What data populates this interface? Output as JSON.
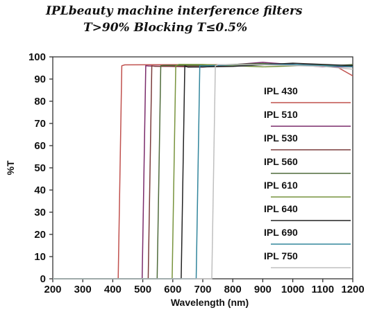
{
  "chart_data": {
    "type": "line",
    "title": "IPLbeauty machine interference filters",
    "subtitle": "T>90% Blocking T≤0.5%",
    "xlabel": "Wavelength (nm)",
    "ylabel": "%T",
    "xlim": [
      200,
      1200
    ],
    "ylim": [
      0,
      100
    ],
    "xticks": [
      "200",
      "300",
      "400",
      "500",
      "600",
      "700",
      "800",
      "900",
      "1000",
      "1100",
      "1200"
    ],
    "yticks": [
      "0",
      "10",
      "20",
      "30",
      "40",
      "50",
      "60",
      "70",
      "80",
      "90",
      "100"
    ],
    "grid": false,
    "legend_position": "right",
    "series": [
      {
        "name": "IPL 430",
        "color": "#c0504d",
        "x": [
          200,
          418,
          430,
          440,
          600,
          800,
          1000,
          1150,
          1200
        ],
        "y": [
          0,
          0,
          96,
          96,
          96,
          97,
          96,
          95,
          92
        ]
      },
      {
        "name": "IPL 510",
        "color": "#7a2a6a",
        "x": [
          200,
          498,
          510,
          520,
          700,
          900,
          1100,
          1200
        ],
        "y": [
          0,
          0,
          96,
          96,
          96,
          97,
          96,
          96
        ]
      },
      {
        "name": "IPL 530",
        "color": "#7a3b3b",
        "x": [
          200,
          518,
          530,
          540,
          700,
          900,
          1100,
          1200
        ],
        "y": [
          0,
          0,
          96,
          96,
          96,
          96,
          97,
          96
        ]
      },
      {
        "name": "IPL 560",
        "color": "#4e6b3a",
        "x": [
          200,
          548,
          560,
          570,
          700,
          900,
          1100,
          1200
        ],
        "y": [
          0,
          0,
          96,
          96,
          96,
          97,
          96,
          96
        ]
      },
      {
        "name": "IPL 610",
        "color": "#77933c",
        "x": [
          200,
          598,
          610,
          620,
          700,
          900,
          1100,
          1200
        ],
        "y": [
          0,
          0,
          96,
          96,
          96,
          96,
          96,
          95
        ]
      },
      {
        "name": "IPL 640",
        "color": "#222222",
        "x": [
          200,
          628,
          640,
          650,
          800,
          1000,
          1200
        ],
        "y": [
          0,
          0,
          96,
          96,
          96,
          97,
          96
        ]
      },
      {
        "name": "IPL 690",
        "color": "#31859c",
        "x": [
          200,
          678,
          690,
          700,
          800,
          1000,
          1200
        ],
        "y": [
          0,
          0,
          96,
          96,
          97,
          96,
          96
        ]
      },
      {
        "name": "IPL 750",
        "color": "#bfbfbf",
        "x": [
          200,
          730,
          742,
          752,
          900,
          1100,
          1200
        ],
        "y": [
          0,
          0,
          96,
          96,
          96,
          96,
          95
        ]
      }
    ]
  }
}
